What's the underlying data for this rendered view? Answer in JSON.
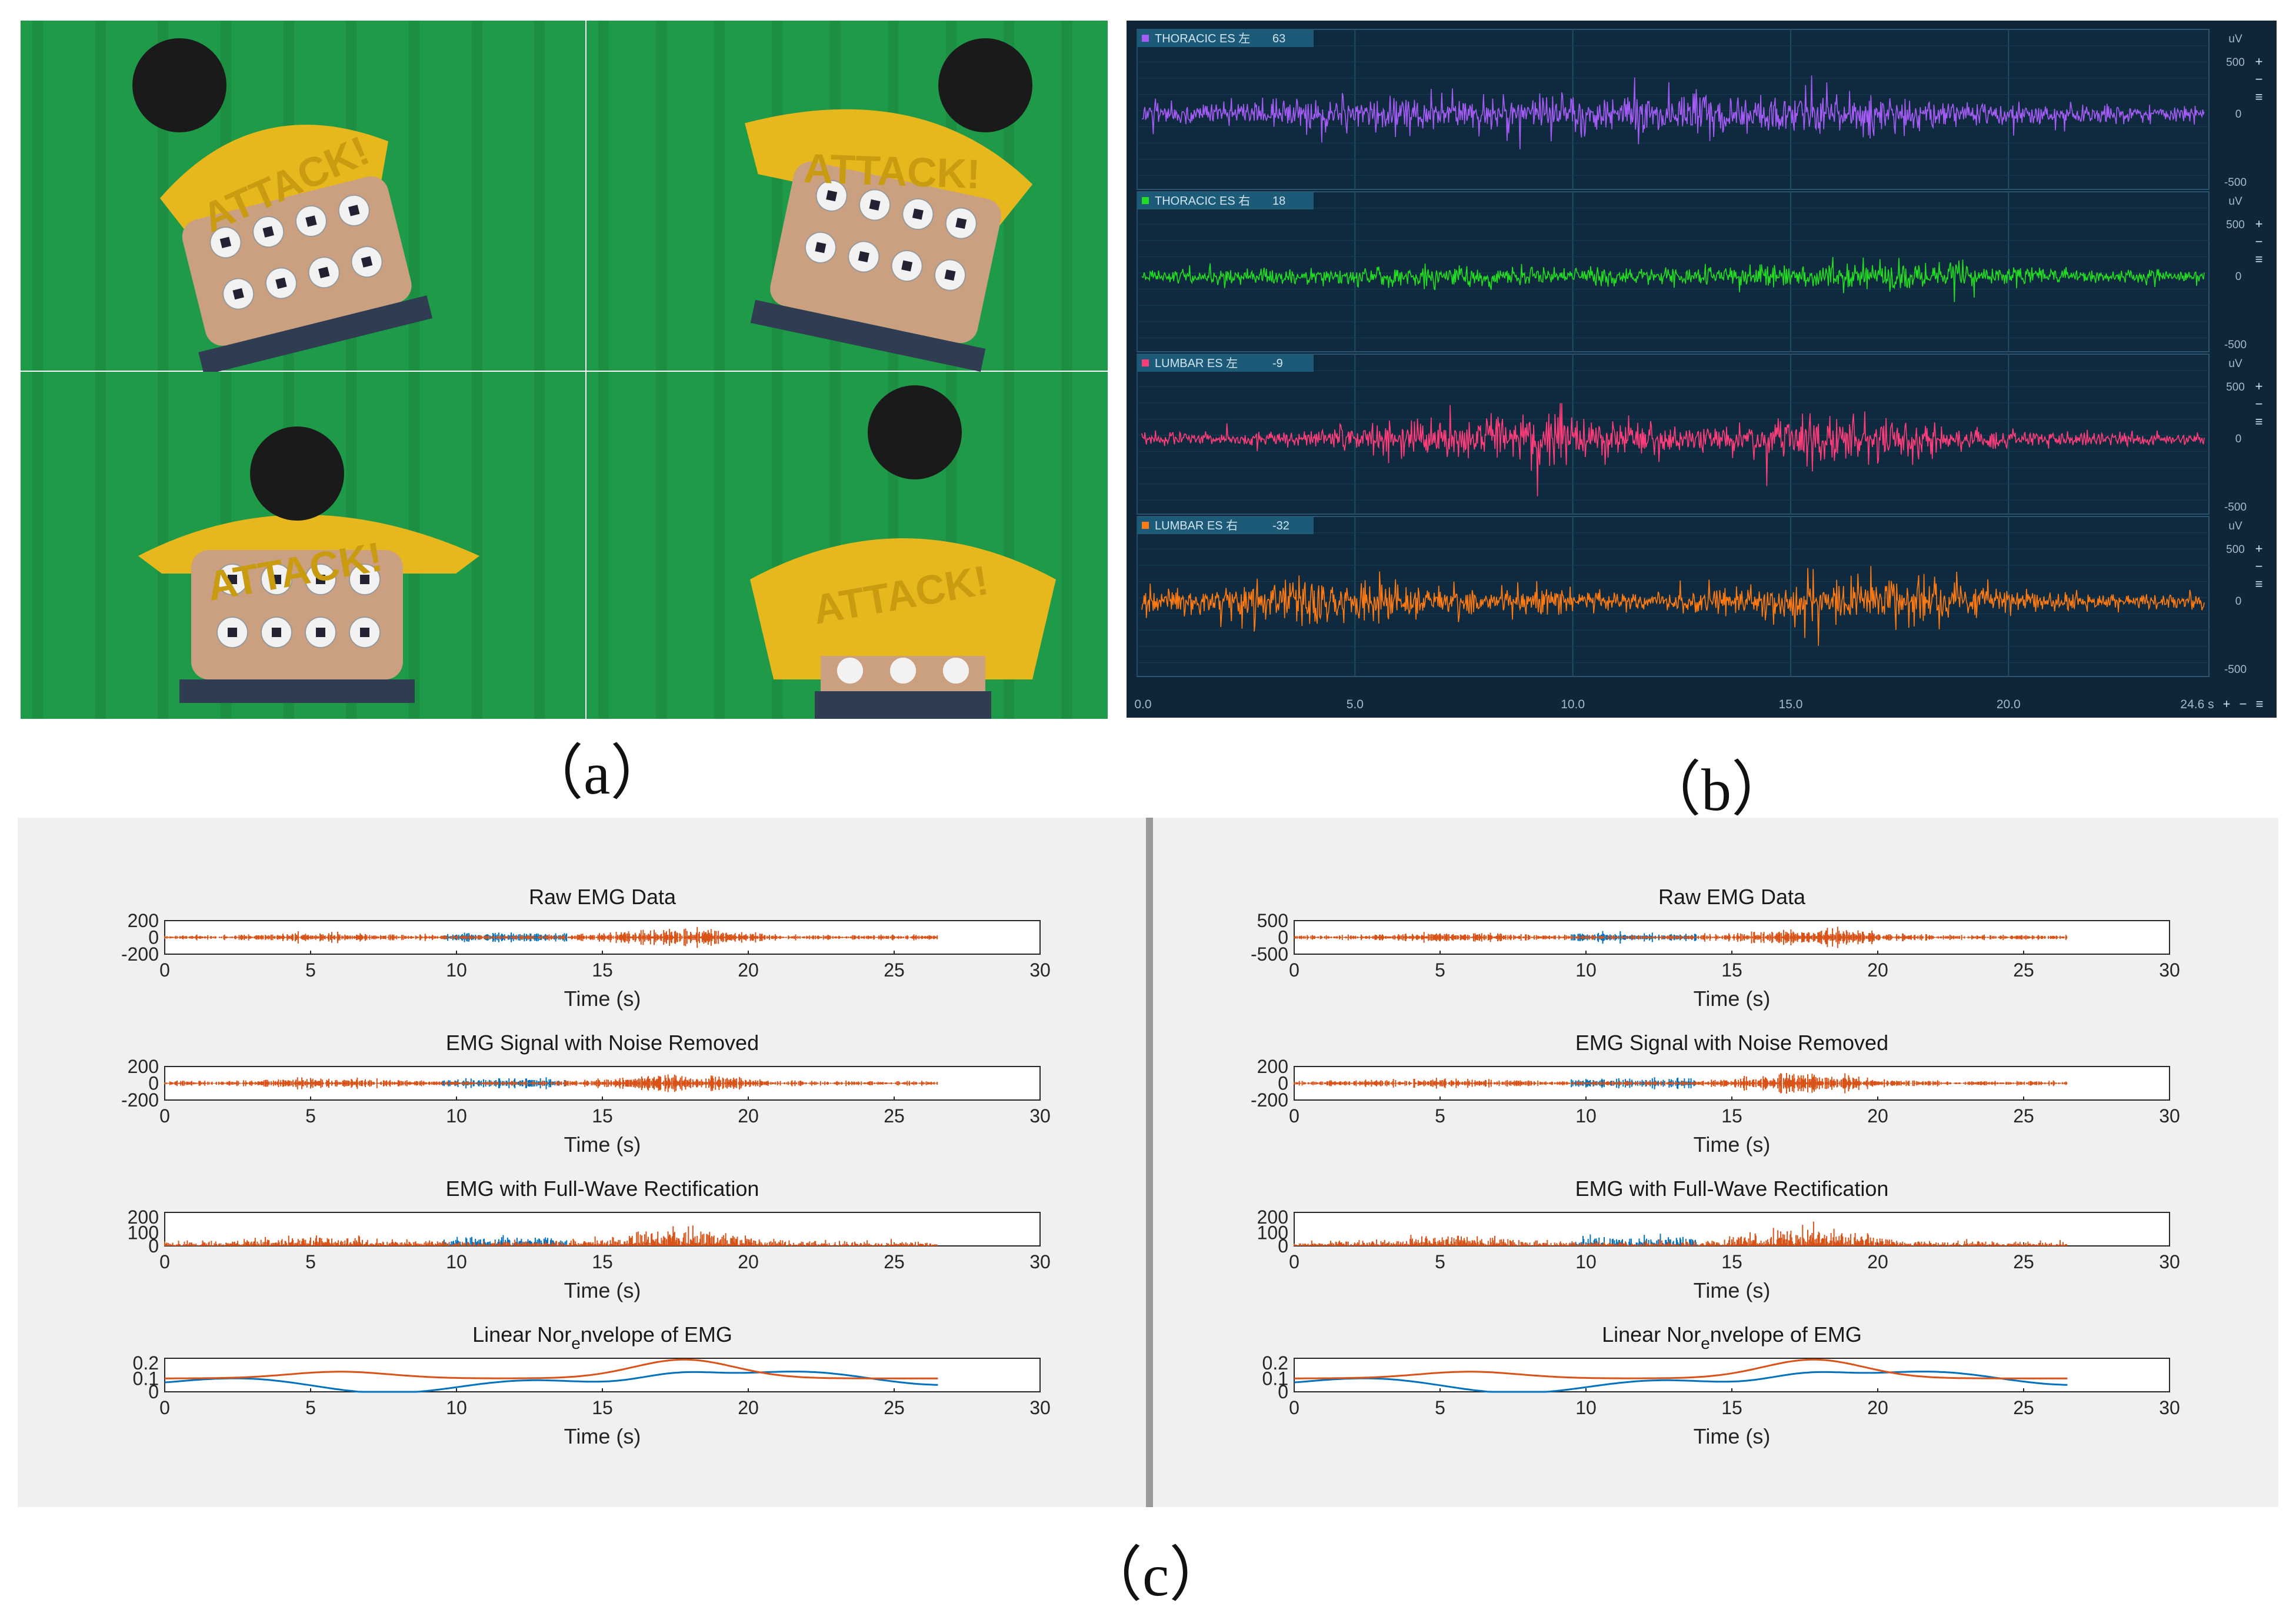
{
  "captions": {
    "a": "（a）",
    "b": "（b）",
    "c": "（c）"
  },
  "panel_a": {
    "photos": [
      {
        "shirt_text": "ATTACK!"
      },
      {
        "shirt_text": "ATTACK!"
      },
      {
        "shirt_text": "ATTACK!"
      },
      {
        "shirt_text": "ATTACK!"
      }
    ],
    "colors": {
      "backdrop": "#1f9a48",
      "shirt": "#e7b81d",
      "skin": "#caa080",
      "pants": "#2f3c52"
    }
  },
  "panel_b": {
    "background": "#102638",
    "channels": [
      {
        "label": "THORACIC ES 左",
        "value": "63",
        "color": "#a55cf7",
        "amp": [
          0.35,
          0.35,
          0.55,
          0.55,
          0.5,
          0.6,
          0.7,
          0.6,
          0.45,
          0.35,
          0.3,
          0.25
        ]
      },
      {
        "label": "THORACIC ES 右",
        "value": "18",
        "color": "#22dd22",
        "amp": [
          0.2,
          0.22,
          0.25,
          0.35,
          0.3,
          0.25,
          0.3,
          0.35,
          0.5,
          0.3,
          0.2,
          0.18
        ]
      },
      {
        "label": "LUMBAR ES 左",
        "value": "-9",
        "color": "#ff3d7a",
        "amp": [
          0.18,
          0.2,
          0.3,
          0.55,
          0.85,
          0.5,
          0.35,
          0.85,
          0.55,
          0.25,
          0.2,
          0.15
        ]
      },
      {
        "label": "LUMBAR ES 右",
        "value": "-32",
        "color": "#ff7a10",
        "amp": [
          0.45,
          0.55,
          0.6,
          0.55,
          0.35,
          0.3,
          0.35,
          0.65,
          0.7,
          0.3,
          0.25,
          0.3
        ]
      }
    ],
    "y_ticks": [
      "uV",
      "500",
      "0",
      "-500"
    ],
    "x_ticks": [
      "0.0",
      "5.0",
      "10.0",
      "15.0",
      "20.0"
    ],
    "x_end": "24.6 s"
  },
  "panel_c": {
    "background": "#f0f0f0",
    "series_colors": [
      "#0072bd",
      "#d95319"
    ],
    "xlabel": "Time (s)",
    "xticks": [
      "0",
      "5",
      "10",
      "15",
      "20",
      "25",
      "30"
    ],
    "xlim": [
      0,
      30
    ],
    "left": [
      {
        "title": "Raw EMG Data",
        "yticks": [
          "200",
          "0",
          "-200"
        ],
        "kind": "raw"
      },
      {
        "title": "EMG Signal with Noise Removed",
        "yticks": [
          "200",
          "0",
          "-200"
        ],
        "kind": "raw"
      },
      {
        "title": "EMG with Full-Wave Rectification",
        "yticks": [
          "200",
          "100",
          "0"
        ],
        "kind": "rect"
      },
      {
        "title": "Linear Nor",
        "title_sub": "e",
        "title_rest": "nvelope of EMG",
        "yticks": [
          "0.2",
          "0.1",
          "0"
        ],
        "kind": "env"
      }
    ],
    "right": [
      {
        "title": "Raw EMG Data",
        "yticks": [
          "500",
          "0",
          "-500"
        ],
        "kind": "raw"
      },
      {
        "title": "EMG Signal with Noise Removed",
        "yticks": [
          "200",
          "0",
          "-200"
        ],
        "kind": "raw"
      },
      {
        "title": "EMG with Full-Wave Rectification",
        "yticks": [
          "200",
          "100",
          "0"
        ],
        "kind": "rect"
      },
      {
        "title": "Linear Nor",
        "title_sub": "e",
        "title_rest": "nvelope of EMG",
        "yticks": [
          "0.2",
          "0.1",
          "0"
        ],
        "kind": "env"
      }
    ]
  }
}
